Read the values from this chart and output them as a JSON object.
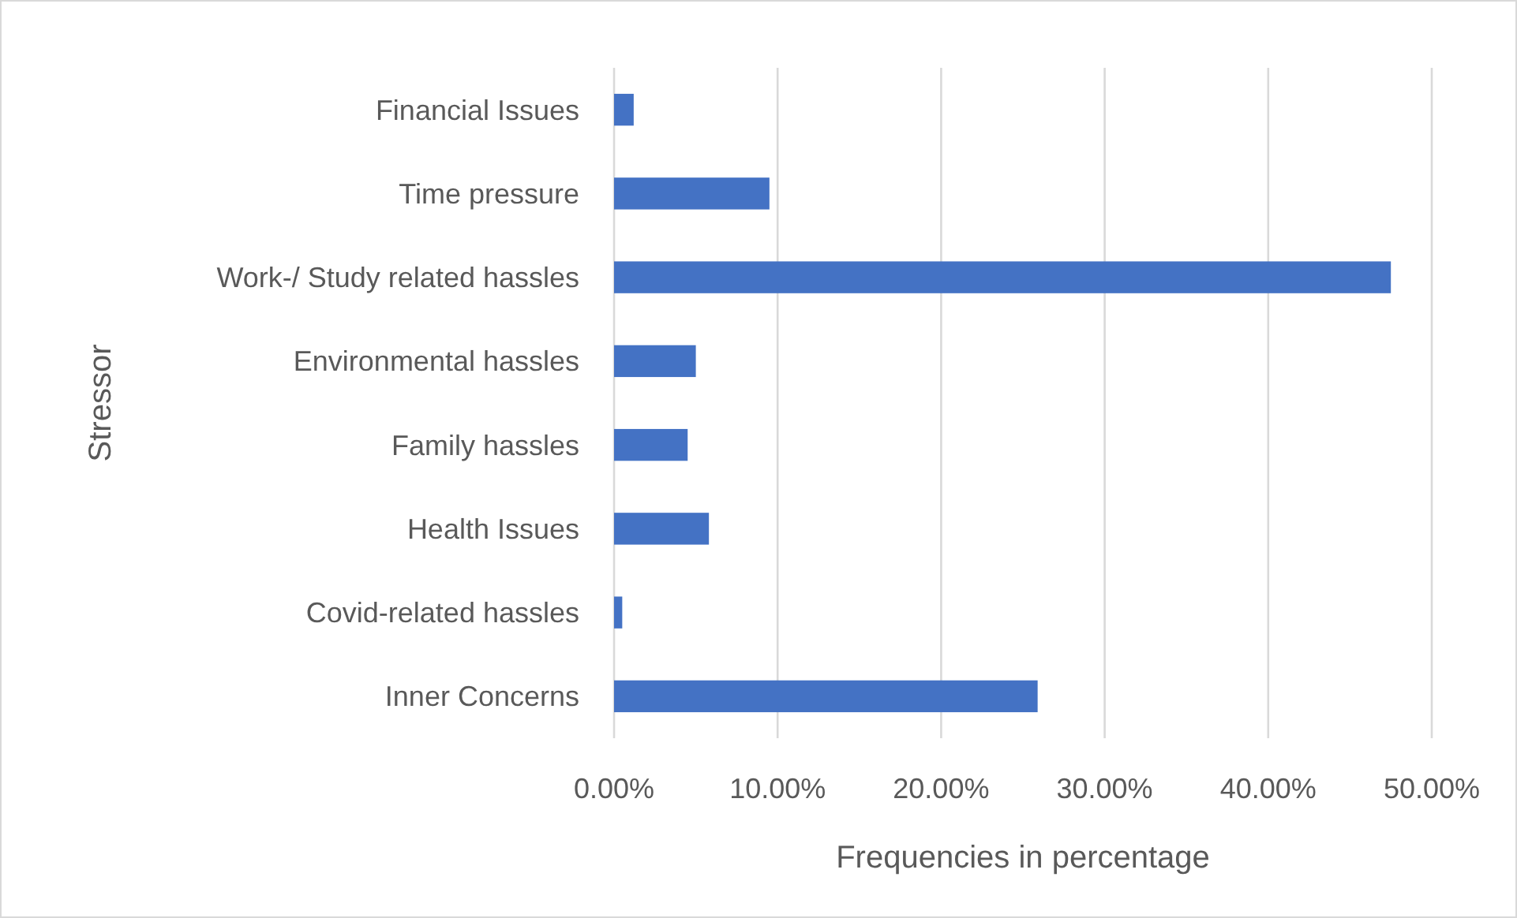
{
  "chart_data": {
    "type": "bar",
    "orientation": "horizontal",
    "xlabel": "Frequencies in percentage",
    "ylabel": "Stressor",
    "categories": [
      "Financial Issues",
      "Time pressure",
      "Work-/ Study related hassles",
      "Environmental hassles",
      "Family hassles",
      "Health Issues",
      "Covid-related hassles",
      "Inner Concerns"
    ],
    "values": [
      1.2,
      9.5,
      47.5,
      5.0,
      4.5,
      5.8,
      0.5,
      25.9
    ],
    "color": "#4472c4",
    "xlim": [
      0,
      50
    ],
    "xticks": [
      {
        "value": 0,
        "label": "0.00%"
      },
      {
        "value": 10,
        "label": "10.00%"
      },
      {
        "value": 20,
        "label": "20.00%"
      },
      {
        "value": 30,
        "label": "30.00%"
      },
      {
        "value": 40,
        "label": "40.00%"
      },
      {
        "value": 50,
        "label": "50.00%"
      }
    ],
    "grid": "x"
  }
}
